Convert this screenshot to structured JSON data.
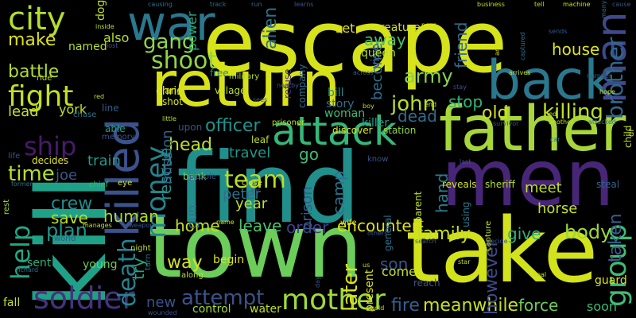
{
  "words": [
    {
      "text": "find",
      "color": "#218f8c"
    },
    {
      "text": "escape",
      "color": "#d6e21a"
    },
    {
      "text": "town",
      "color": "#6ccd5a"
    },
    {
      "text": "take",
      "color": "#d2e21b"
    },
    {
      "text": "men",
      "color": "#482677"
    },
    {
      "text": "kill",
      "color": "#1fa187"
    },
    {
      "text": "return",
      "color": "#d8e219"
    },
    {
      "text": "father",
      "color": "#a7d63a"
    },
    {
      "text": "back",
      "color": "#2a788e"
    },
    {
      "text": "killed",
      "color": "#3b528b"
    },
    {
      "text": "war",
      "color": "#2a788e"
    },
    {
      "text": "attack",
      "color": "#35b779"
    },
    {
      "text": "man",
      "color": "#3e4a89"
    },
    {
      "text": "city",
      "color": "#b5de2b"
    },
    {
      "text": "soldier",
      "color": "#46327e"
    },
    {
      "text": "mother",
      "color": "#a0da39"
    },
    {
      "text": "help",
      "color": "#22a884"
    },
    {
      "text": "fight",
      "color": "#c2df23"
    },
    {
      "text": "money",
      "color": "#26828e"
    },
    {
      "text": "group",
      "color": "#3fbc73"
    },
    {
      "text": "brother",
      "color": "#31688e"
    },
    {
      "text": "shoot",
      "color": "#90d743"
    },
    {
      "text": "death",
      "color": "#26828e"
    },
    {
      "text": "ship",
      "color": "#481a6c"
    },
    {
      "text": "team",
      "color": "#b8de29"
    },
    {
      "text": "army",
      "color": "#86d549"
    },
    {
      "text": "john",
      "color": "#b8de29"
    },
    {
      "text": "gang",
      "color": "#8fd744"
    },
    {
      "text": "time",
      "color": "#b5de2b"
    },
    {
      "text": "attempt",
      "color": "#3b528b"
    },
    {
      "text": "fire",
      "color": "#34608d"
    },
    {
      "text": "meanwhile",
      "color": "#c8e020"
    },
    {
      "text": "force",
      "color": "#6ece58"
    },
    {
      "text": "family",
      "color": "#c5e021"
    },
    {
      "text": "body",
      "color": "#9bd93c"
    },
    {
      "text": "crew",
      "color": "#228c8d"
    },
    {
      "text": "human",
      "color": "#aadc32"
    },
    {
      "text": "save",
      "color": "#bade28"
    },
    {
      "text": "plan",
      "color": "#1f958b"
    },
    {
      "text": "killing",
      "color": "#bddf26"
    },
    {
      "text": "head",
      "color": "#c2df23"
    },
    {
      "text": "officer",
      "color": "#1f948c"
    },
    {
      "text": "house",
      "color": "#dfe318"
    },
    {
      "text": "dead",
      "color": "#2f6c8e"
    },
    {
      "text": "make",
      "color": "#dde318"
    },
    {
      "text": "battle",
      "color": "#b2dd2d"
    },
    {
      "text": "away",
      "color": "#4ac16d"
    },
    {
      "text": "stop",
      "color": "#31b57b"
    },
    {
      "text": "old",
      "color": "#d0e11c"
    },
    {
      "text": "later",
      "color": "#dae319"
    },
    {
      "text": "way",
      "color": "#d4e21a"
    },
    {
      "text": "home",
      "color": "#c2df23"
    },
    {
      "text": "leave",
      "color": "#4ec36b"
    },
    {
      "text": "order",
      "color": "#433e85"
    },
    {
      "text": "encounter",
      "color": "#dfe318"
    },
    {
      "text": "son",
      "color": "#3a548c"
    },
    {
      "text": "give",
      "color": "#2db27d"
    },
    {
      "text": "however",
      "color": "#3e4a89"
    },
    {
      "text": "new",
      "color": "#3b528b"
    },
    {
      "text": "taken",
      "color": "#355f8d"
    },
    {
      "text": "peter",
      "color": "#2c718e"
    },
    {
      "text": "year",
      "color": "#c2df23"
    },
    {
      "text": "travel",
      "color": "#1f978b"
    },
    {
      "text": "rescue",
      "color": "#21918c"
    },
    {
      "text": "mission",
      "color": "#32648e"
    },
    {
      "text": "hand",
      "color": "#277f8e"
    },
    {
      "text": "meet",
      "color": "#c0df25"
    },
    {
      "text": "camp",
      "color": "#2c728e"
    },
    {
      "text": "prison",
      "color": "#38598c"
    },
    {
      "text": "friend",
      "color": "#306a8e"
    },
    {
      "text": "become",
      "color": "#2d708e"
    },
    {
      "text": "alien",
      "color": "#2d708e"
    },
    {
      "text": "chris",
      "color": "#e2e418"
    },
    {
      "text": "york",
      "color": "#c0df25"
    },
    {
      "text": "lead",
      "color": "#c8e020"
    },
    {
      "text": "joe",
      "color": "#39568c"
    },
    {
      "text": "train",
      "color": "#1f9a8a"
    },
    {
      "text": "go",
      "color": "#3fbc73"
    },
    {
      "text": "horse",
      "color": "#c5e021"
    },
    {
      "text": "gun",
      "color": "#2c728e"
    },
    {
      "text": "come",
      "color": "#c5e021"
    },
    {
      "text": "young",
      "color": "#6ece58"
    },
    {
      "text": "sent",
      "color": "#29af7f"
    },
    {
      "text": "also",
      "color": "#b5de2b"
    },
    {
      "text": "try",
      "color": "#22a884"
    },
    {
      "text": "control",
      "color": "#a5db36"
    },
    {
      "text": "begin",
      "color": "#dde318"
    },
    {
      "text": "fall",
      "color": "#c2df23"
    },
    {
      "text": "soon",
      "color": "#3aba76"
    },
    {
      "text": "water",
      "color": "#c2df23"
    },
    {
      "text": "guard",
      "color": "#dde318"
    },
    {
      "text": "story",
      "color": "#2e6f8e"
    },
    {
      "text": "woman",
      "color": "#3fbc73"
    },
    {
      "text": "bill",
      "color": "#228d8d"
    },
    {
      "text": "killer",
      "color": "#1f9e89"
    },
    {
      "text": "visit",
      "color": "#3b528b"
    },
    {
      "text": "queen",
      "color": "#b5de2b"
    },
    {
      "text": "creature",
      "color": "#d2e21b"
    },
    {
      "text": "set",
      "color": "#dfe318"
    },
    {
      "text": "dog",
      "color": "#c2df23"
    },
    {
      "text": "power",
      "color": "#25ab82"
    },
    {
      "text": "named",
      "color": "#b5de2b"
    },
    {
      "text": "land",
      "color": "#d2e21b"
    },
    {
      "text": "shot",
      "color": "#d8e219"
    },
    {
      "text": "line",
      "color": "#365c8d"
    },
    {
      "text": "able",
      "color": "#1fa188"
    },
    {
      "text": "upon",
      "color": "#3b528b"
    },
    {
      "text": "discover",
      "color": "#dde318"
    },
    {
      "text": "station",
      "color": "#90d743"
    },
    {
      "text": "leaf",
      "color": "#c0df25"
    },
    {
      "text": "bank",
      "color": "#7ad151"
    },
    {
      "text": "sheriff",
      "color": "#b5de2b"
    },
    {
      "text": "reveals",
      "color": "#d0e11c"
    },
    {
      "text": "steal",
      "color": "#33628d"
    },
    {
      "text": "refuse",
      "color": "#46327e"
    },
    {
      "text": "company",
      "color": "#2e6e8e"
    },
    {
      "text": "military",
      "color": "#b5de2b"
    },
    {
      "text": "village",
      "color": "#bddf26"
    },
    {
      "text": "free",
      "color": "#228d8d"
    },
    {
      "text": "prisoner",
      "color": "#bddf26"
    },
    {
      "text": "decides",
      "color": "#dfe318"
    },
    {
      "text": "present",
      "color": "#d8e219"
    },
    {
      "text": "general",
      "color": "#2c728e"
    },
    {
      "text": "reach",
      "color": "#3b528b"
    },
    {
      "text": "parent",
      "color": "#c2df23"
    },
    {
      "text": "wife",
      "color": "#dde318"
    },
    {
      "text": "using",
      "color": "#2a788e"
    },
    {
      "text": "capture",
      "color": "#c2df23"
    },
    {
      "text": "child",
      "color": "#bddf26"
    },
    {
      "text": "dr",
      "color": "#d8e219"
    },
    {
      "text": "ride",
      "color": "#bddf26"
    },
    {
      "text": "chase",
      "color": "#2c728e"
    },
    {
      "text": "memory",
      "color": "#3b528b"
    },
    {
      "text": "people",
      "color": "#3a548c"
    },
    {
      "text": "close",
      "color": "#dfe318"
    },
    {
      "text": "eye",
      "color": "#d2e21b"
    },
    {
      "text": "chief",
      "color": "#35b779"
    },
    {
      "text": "life",
      "color": "#39568c"
    },
    {
      "text": "rest",
      "color": "#a5db36"
    },
    {
      "text": "former",
      "color": "#2c728e"
    },
    {
      "text": "world",
      "color": "#3b528b"
    },
    {
      "text": "manages",
      "color": "#c2df23"
    },
    {
      "text": "weapon",
      "color": "#39568c"
    },
    {
      "text": "night",
      "color": "#c0df25"
    },
    {
      "text": "turn",
      "color": "#2e6e8e"
    },
    {
      "text": "along",
      "color": "#c2df23"
    },
    {
      "text": "name",
      "color": "#c8e020"
    },
    {
      "text": "richard",
      "color": "#2c728e"
    },
    {
      "text": "inside",
      "color": "#c2df23"
    },
    {
      "text": "lost",
      "color": "#3a548c"
    },
    {
      "text": "causing",
      "color": "#2e6e8e"
    },
    {
      "text": "track",
      "color": "#2e6e8e"
    },
    {
      "text": "run",
      "color": "#2e6e8e"
    },
    {
      "text": "learns",
      "color": "#39568c"
    },
    {
      "text": "near",
      "color": "#dde318"
    },
    {
      "text": "business",
      "color": "#c2df23"
    },
    {
      "text": "tell",
      "color": "#c2df23"
    },
    {
      "text": "machine",
      "color": "#c8e020"
    },
    {
      "text": "many",
      "color": "#2e6e8e"
    },
    {
      "text": "cause",
      "color": "#39568c"
    },
    {
      "text": "arrive",
      "color": "#d8e219"
    },
    {
      "text": "captured",
      "color": "#2c728e"
    },
    {
      "text": "sends",
      "color": "#3a548c"
    },
    {
      "text": "across",
      "color": "#3b528b"
    },
    {
      "text": "arrives",
      "color": "#c2df23"
    },
    {
      "text": "number",
      "color": "#39568c"
    },
    {
      "text": "stay",
      "color": "#3a548c"
    },
    {
      "text": "hope",
      "color": "#c2df23"
    },
    {
      "text": "red",
      "color": "#c0df25"
    },
    {
      "text": "little",
      "color": "#bddf26"
    },
    {
      "text": "sees",
      "color": "#3a548c"
    },
    {
      "text": "end",
      "color": "#c2df23"
    },
    {
      "text": "survivor",
      "color": "#39568c"
    },
    {
      "text": "another",
      "color": "#bddf26"
    },
    {
      "text": "attacked",
      "color": "#2c728e"
    },
    {
      "text": "led",
      "color": "#c2df23"
    },
    {
      "text": "know",
      "color": "#3a548c"
    },
    {
      "text": "last",
      "color": "#39568c"
    },
    {
      "text": "car",
      "color": "#2c728e"
    },
    {
      "text": "mr",
      "color": "#3a548c"
    },
    {
      "text": "boy",
      "color": "#c0df25"
    },
    {
      "text": "others",
      "color": "#39568c"
    },
    {
      "text": "search",
      "color": "#3a548c"
    },
    {
      "text": "decide",
      "color": "#3a548c"
    },
    {
      "text": "star",
      "color": "#c2df23"
    },
    {
      "text": "us",
      "color": "#c2df23"
    },
    {
      "text": "deal",
      "color": "#c2df23"
    },
    {
      "text": "day",
      "color": "#3a548c"
    },
    {
      "text": "gold",
      "color": "#c2df23"
    },
    {
      "text": "wounded",
      "color": "#3a548c"
    },
    {
      "text": "nearby",
      "color": "#3b528b"
    }
  ]
}
